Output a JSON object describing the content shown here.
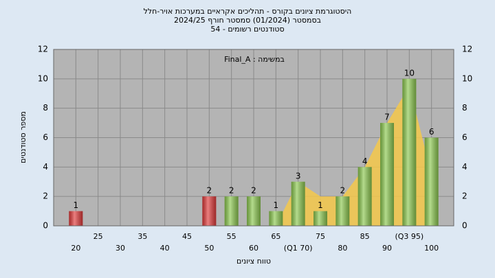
{
  "chart_data": {
    "type": "bar",
    "title": "היסטוגרמת ציונים בקורס - תהליכים אקראיים במערכות אויר-חלל",
    "subtitle": "בסמסטר  (01/2024)  סמסטר חורף 2024/25",
    "subtitle2": "סטודנטים רשומים - 54",
    "annotation": "במשימה : Final_A",
    "xlabel": "טווח ציונים",
    "ylabel": "מספר סטודנטים",
    "categories": [
      "20",
      "25",
      "30",
      "35",
      "40",
      "45",
      "50",
      "55",
      "60",
      "65",
      "(Q1 70)",
      "75",
      "80",
      "85",
      "90",
      "(Q3 95)",
      "100"
    ],
    "values": [
      1,
      0,
      0,
      0,
      0,
      0,
      2,
      2,
      2,
      1,
      3,
      1,
      2,
      4,
      7,
      10,
      6
    ],
    "colors": [
      "#e03a3a",
      "#8cc850",
      "#8cc850",
      "#8cc850",
      "#8cc850",
      "#8cc850",
      "#e03a3a",
      "#8cc850",
      "#8cc850",
      "#8cc850",
      "#8cc850",
      "#8cc850",
      "#8cc850",
      "#8cc850",
      "#8cc850",
      "#8cc850",
      "#8cc850"
    ],
    "area": {
      "color": "#f5c84a",
      "values": [
        null,
        null,
        null,
        null,
        null,
        null,
        null,
        null,
        null,
        0,
        3,
        2,
        2,
        4,
        7,
        9.5,
        3.5
      ]
    },
    "ylim": [
      0,
      12
    ],
    "yticks": [
      0,
      2,
      4,
      6,
      8,
      10,
      12
    ],
    "y2lim": [
      0,
      12
    ],
    "y2ticks": [
      0,
      2,
      4,
      6,
      8,
      10,
      12
    ],
    "grid": true
  }
}
